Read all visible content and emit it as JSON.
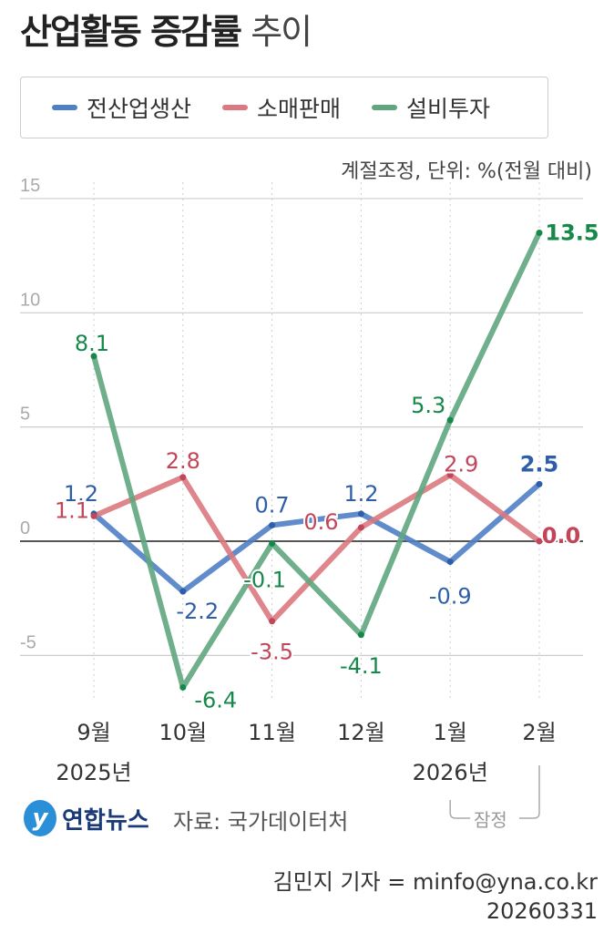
{
  "header": {
    "title_bold": "산업활동 증감률",
    "title_light": "추이"
  },
  "chart_data": {
    "type": "line",
    "categories": [
      "9월",
      "10월",
      "11월",
      "12월",
      "1월",
      "2월"
    ],
    "year_labels": [
      {
        "index": 0,
        "label": "2025년"
      },
      {
        "index": 4,
        "label": "2026년"
      }
    ],
    "preliminary_label": "잠정",
    "unit": "계절조정, 단위: %(전월 대비)",
    "ylim": [
      -7,
      15
    ],
    "yticks": [
      15,
      10,
      5,
      0,
      -5
    ],
    "grid": true,
    "legend_position": "top",
    "series": [
      {
        "name": "전산업생산",
        "color": "#4f7fc6",
        "label_color": "#2f5ea8",
        "values": [
          1.2,
          -2.2,
          0.7,
          1.2,
          -0.9,
          2.5
        ]
      },
      {
        "name": "소매판매",
        "color": "#db7880",
        "label_color": "#c1465a",
        "values": [
          1.1,
          2.8,
          -3.5,
          0.6,
          2.9,
          0.0
        ]
      },
      {
        "name": "설비투자",
        "color": "#5fa67e",
        "label_color": "#16894a",
        "values": [
          8.1,
          -6.4,
          -0.1,
          -4.1,
          5.3,
          13.5
        ]
      }
    ]
  },
  "footer": {
    "logo": "연합뉴스",
    "logo_mark": "y",
    "source": "자료: 국가데이터처",
    "credit": "김민지 기자 = minfo@yna.co.kr",
    "date": "20260331"
  }
}
